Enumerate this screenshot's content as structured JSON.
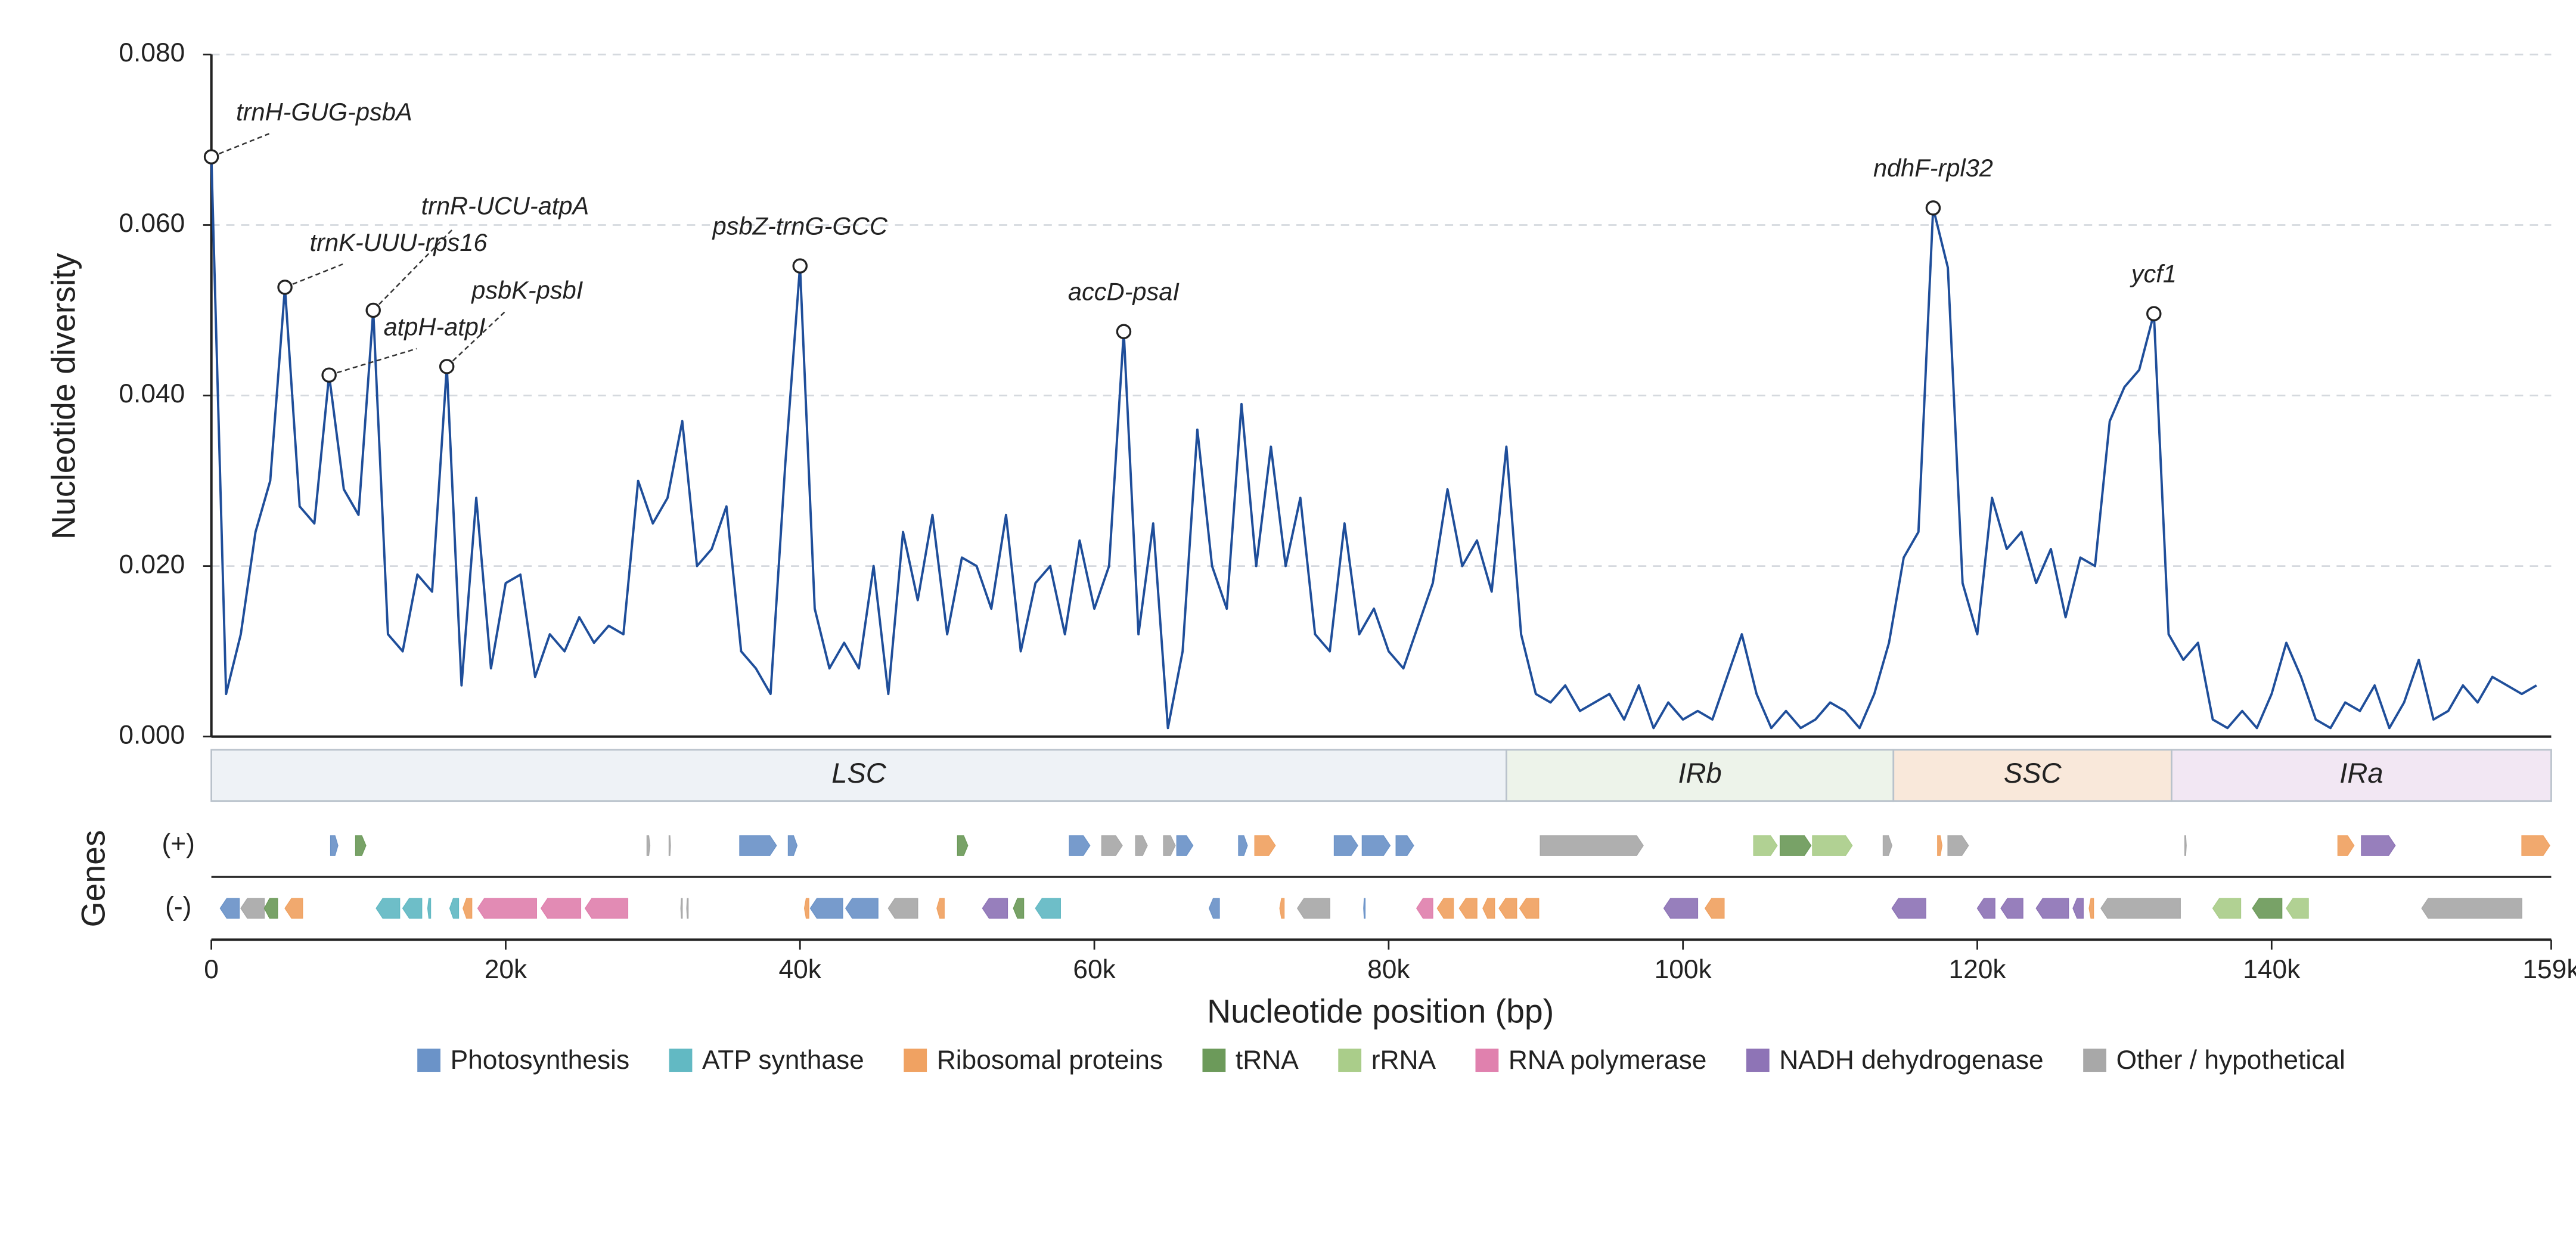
{
  "chart_data": {
    "type": "line",
    "y_label": "Nucleotide diversity",
    "x_label": "Nucleotide position (bp)",
    "color": "#1f4e9a",
    "xlim": [
      0,
      159000
    ],
    "ylim": [
      0,
      0.08
    ],
    "xticks": [
      0,
      {
        "value": 20000,
        "label": "20k"
      },
      {
        "value": 40000,
        "label": "40k"
      },
      {
        "value": 60000,
        "label": "60k"
      },
      {
        "value": 80000,
        "label": "80k"
      },
      {
        "value": 100000,
        "label": "100k"
      },
      {
        "value": 120000,
        "label": "120k"
      },
      {
        "value": 140000,
        "label": "140k"
      },
      {
        "value": 159000,
        "label": "159k"
      }
    ],
    "yticks": [
      {
        "value": 0,
        "label": "0.000"
      },
      {
        "value": 0.02,
        "label": "0.020"
      },
      {
        "value": 0.04,
        "label": "0.040"
      },
      {
        "value": 0.06,
        "label": "0.060"
      },
      {
        "value": 0.08,
        "label": "0.080"
      }
    ],
    "grid": true,
    "x": [
      0,
      1000,
      2000,
      3000,
      4000,
      5000,
      6000,
      7000,
      8000,
      9000,
      10000,
      11000,
      12000,
      13000,
      14000,
      15000,
      16000,
      17000,
      18000,
      19000,
      20000,
      21000,
      22000,
      23000,
      24000,
      25000,
      26000,
      27000,
      28000,
      29000,
      30000,
      31000,
      32000,
      33000,
      34000,
      35000,
      36000,
      37000,
      38000,
      39000,
      40000,
      41000,
      42000,
      43000,
      44000,
      45000,
      46000,
      47000,
      48000,
      49000,
      50000,
      51000,
      52000,
      53000,
      54000,
      55000,
      56000,
      57000,
      58000,
      59000,
      60000,
      61000,
      62000,
      63000,
      64000,
      65000,
      66000,
      67000,
      68000,
      69000,
      70000,
      71000,
      72000,
      73000,
      74000,
      75000,
      76000,
      77000,
      78000,
      79000,
      80000,
      81000,
      82000,
      83000,
      84000,
      85000,
      86000,
      87000,
      88000,
      89000,
      90000,
      91000,
      92000,
      93000,
      94000,
      95000,
      96000,
      97000,
      98000,
      99000,
      100000,
      101000,
      102000,
      103000,
      104000,
      105000,
      106000,
      107000,
      108000,
      109000,
      110000,
      111000,
      112000,
      113000,
      114000,
      115000,
      116000,
      117000,
      118000,
      119000,
      120000,
      121000,
      122000,
      123000,
      124000,
      125000,
      126000,
      127000,
      128000,
      129000,
      130000,
      131000,
      132000,
      133000,
      134000,
      135000,
      136000,
      137000,
      138000,
      139000,
      140000,
      141000,
      142000,
      143000,
      144000,
      145000,
      146000,
      147000,
      148000,
      149000,
      150000,
      151000,
      152000,
      153000,
      154000,
      155000,
      156000,
      157000,
      158000
    ],
    "values": [
      0.068,
      0.005,
      0.012,
      0.024,
      0.03,
      0.0527,
      0.027,
      0.025,
      0.0424,
      0.029,
      0.026,
      0.05,
      0.012,
      0.01,
      0.019,
      0.017,
      0.0434,
      0.006,
      0.028,
      0.008,
      0.018,
      0.019,
      0.007,
      0.012,
      0.01,
      0.014,
      0.011,
      0.013,
      0.012,
      0.03,
      0.025,
      0.028,
      0.037,
      0.02,
      0.022,
      0.027,
      0.01,
      0.008,
      0.005,
      0.032,
      0.0552,
      0.015,
      0.008,
      0.011,
      0.008,
      0.02,
      0.005,
      0.024,
      0.016,
      0.026,
      0.012,
      0.021,
      0.02,
      0.015,
      0.026,
      0.01,
      0.018,
      0.02,
      0.012,
      0.023,
      0.015,
      0.02,
      0.0475,
      0.012,
      0.025,
      0.001,
      0.01,
      0.036,
      0.02,
      0.015,
      0.039,
      0.02,
      0.034,
      0.02,
      0.028,
      0.012,
      0.01,
      0.025,
      0.012,
      0.015,
      0.01,
      0.008,
      0.013,
      0.018,
      0.029,
      0.02,
      0.023,
      0.017,
      0.034,
      0.012,
      0.005,
      0.004,
      0.006,
      0.003,
      0.004,
      0.005,
      0.002,
      0.006,
      0.001,
      0.004,
      0.002,
      0.003,
      0.002,
      0.007,
      0.012,
      0.005,
      0.001,
      0.003,
      0.001,
      0.002,
      0.004,
      0.003,
      0.001,
      0.005,
      0.011,
      0.021,
      0.024,
      0.062,
      0.055,
      0.018,
      0.012,
      0.028,
      0.022,
      0.024,
      0.018,
      0.022,
      0.014,
      0.021,
      0.02,
      0.037,
      0.041,
      0.043,
      0.0496,
      0.012,
      0.009,
      0.011,
      0.002,
      0.001,
      0.003,
      0.001,
      0.005,
      0.011,
      0.007,
      0.002,
      0.001,
      0.004,
      0.003,
      0.006,
      0.001,
      0.004,
      0.009,
      0.002,
      0.003,
      0.006,
      0.004,
      0.007,
      0.006,
      0.005,
      0.006
    ],
    "annotations": [
      {
        "label": "trnH-GUG-psbA",
        "x": 0,
        "y": 0.068
      },
      {
        "label": "trnK-UUU-rps16",
        "x": 5000,
        "y": 0.0527
      },
      {
        "label": "atpH-atpI",
        "x": 8000,
        "y": 0.0424
      },
      {
        "label": "trnR-UCU-atpA",
        "x": 11000,
        "y": 0.05
      },
      {
        "label": "psbK-psbI",
        "x": 16000,
        "y": 0.0434
      },
      {
        "label": "psbZ-trnG-GCC",
        "x": 40000,
        "y": 0.0552
      },
      {
        "label": "accD-psaI",
        "x": 62000,
        "y": 0.0475
      },
      {
        "label": "ndhF-rpl32",
        "x": 117000,
        "y": 0.062
      },
      {
        "label": "ycf1",
        "x": 132000,
        "y": 0.0496
      }
    ],
    "regions": [
      {
        "name": "LSC",
        "start": 0,
        "end": 88000,
        "color": "#eef2f6"
      },
      {
        "name": "IRb",
        "start": 88000,
        "end": 114300,
        "color": "#edf3ea"
      },
      {
        "name": "SSC",
        "start": 114300,
        "end": 133200,
        "color": "#f9e8da"
      },
      {
        "name": "IRa",
        "start": 133200,
        "end": 159000,
        "color": "#f2e7f3"
      }
    ],
    "gene_axis_label": "Genes",
    "legend": [
      {
        "name": "Photosynthesis",
        "color": "#6b93c8"
      },
      {
        "name": "ATP synthase",
        "color": "#62b9c3"
      },
      {
        "name": "Ribosomal proteins",
        "color": "#f0a262"
      },
      {
        "name": "tRNA",
        "color": "#6c9a5a"
      },
      {
        "name": "rRNA",
        "color": "#aacd8a"
      },
      {
        "name": "RNA polymerase",
        "color": "#e081ae"
      },
      {
        "name": "NADH dehydrogenase",
        "color": "#8e74b6"
      },
      {
        "name": "Other / hypothetical",
        "color": "#a8a8a8"
      }
    ],
    "gene_tracks": [
      {
        "label": "(+)",
        "genes": [
          [
            8100,
            8600,
            0
          ],
          [
            9800,
            10500,
            3
          ],
          [
            29600,
            29800,
            7
          ],
          [
            31100,
            31200,
            7
          ],
          [
            35900,
            38400,
            0
          ],
          [
            39200,
            39800,
            0
          ],
          [
            50700,
            51400,
            3
          ],
          [
            58300,
            59700,
            0
          ],
          [
            60500,
            61900,
            7
          ],
          [
            62800,
            63600,
            7
          ],
          [
            64700,
            65500,
            7
          ],
          [
            65600,
            66700,
            0
          ],
          [
            69800,
            70400,
            0
          ],
          [
            70900,
            72300,
            2
          ],
          [
            76300,
            77900,
            0
          ],
          [
            78200,
            80100,
            0
          ],
          [
            80500,
            81700,
            0
          ],
          [
            90300,
            97300,
            7
          ],
          [
            104800,
            106400,
            4
          ],
          [
            106600,
            108700,
            3
          ],
          [
            108800,
            111500,
            4
          ],
          [
            113600,
            114200,
            7
          ],
          [
            117300,
            117600,
            2
          ],
          [
            118000,
            119400,
            7
          ],
          [
            134100,
            134200,
            7
          ],
          [
            144500,
            145600,
            2
          ],
          [
            146100,
            148400,
            6
          ],
          [
            157000,
            158900,
            2
          ]
        ]
      },
      {
        "label": "(-)",
        "genes": [
          [
            600,
            1900,
            0
          ],
          [
            2000,
            3600,
            7
          ],
          [
            3600,
            4500,
            3
          ],
          [
            5000,
            6200,
            2
          ],
          [
            11200,
            12800,
            1
          ],
          [
            13000,
            14300,
            1
          ],
          [
            14700,
            14900,
            1
          ],
          [
            16200,
            16800,
            1
          ],
          [
            17100,
            17700,
            2
          ],
          [
            18100,
            22100,
            5
          ],
          [
            22400,
            25100,
            5
          ],
          [
            25400,
            28300,
            5
          ],
          [
            31900,
            32000,
            7
          ],
          [
            32300,
            32400,
            7
          ],
          [
            40300,
            40600,
            2
          ],
          [
            40700,
            42900,
            0
          ],
          [
            43100,
            45300,
            0
          ],
          [
            46000,
            48000,
            7
          ],
          [
            49300,
            49800,
            2
          ],
          [
            52400,
            54100,
            6
          ],
          [
            54500,
            55200,
            3
          ],
          [
            56000,
            57700,
            1
          ],
          [
            67800,
            68500,
            0
          ],
          [
            72600,
            72900,
            2
          ],
          [
            73800,
            76000,
            7
          ],
          [
            78300,
            78400,
            0
          ],
          [
            81900,
            83000,
            5
          ],
          [
            83300,
            84400,
            2
          ],
          [
            84800,
            86000,
            2
          ],
          [
            86400,
            87200,
            2
          ],
          [
            87500,
            88700,
            2
          ],
          [
            88900,
            90200,
            2
          ],
          [
            98700,
            101000,
            6
          ],
          [
            101500,
            102800,
            2
          ],
          [
            114200,
            116500,
            6
          ],
          [
            120000,
            121200,
            6
          ],
          [
            121600,
            123100,
            6
          ],
          [
            124000,
            126200,
            6
          ],
          [
            126500,
            127200,
            6
          ],
          [
            127600,
            127900,
            2
          ],
          [
            128400,
            133800,
            7
          ],
          [
            136000,
            137900,
            4
          ],
          [
            138700,
            140700,
            3
          ],
          [
            141000,
            142500,
            4
          ],
          [
            150200,
            157000,
            7
          ]
        ]
      }
    ]
  }
}
